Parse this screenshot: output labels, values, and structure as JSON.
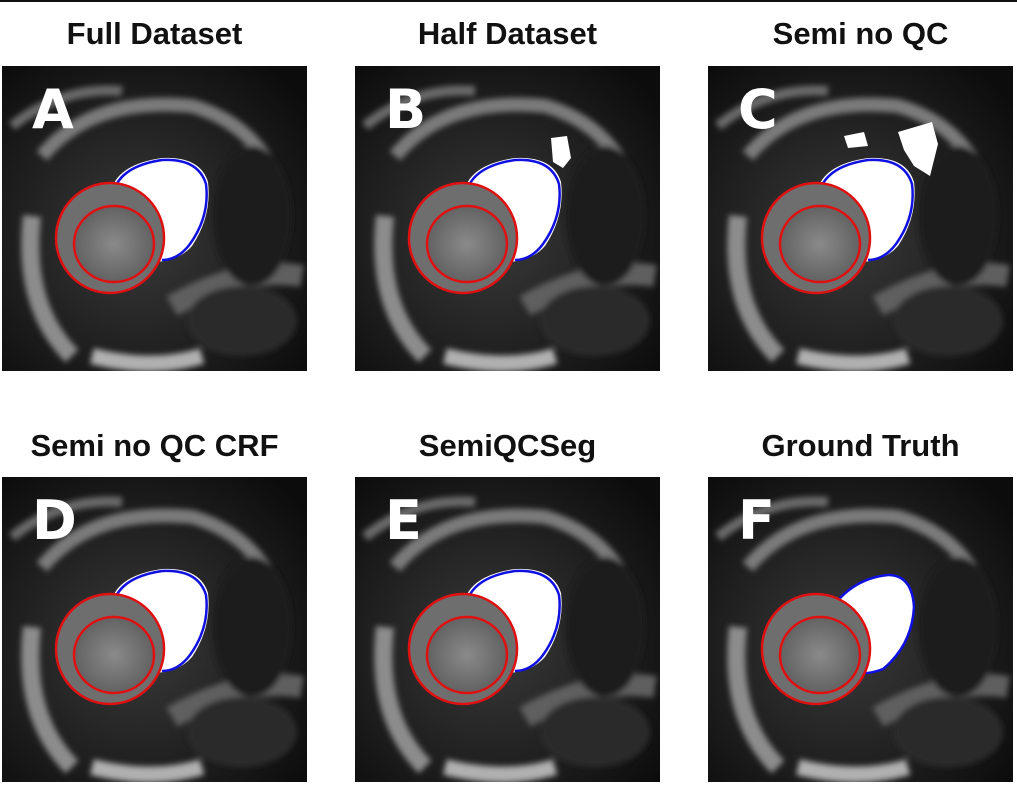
{
  "panels": [
    {
      "letter": "A",
      "title": "Full Dataset",
      "variant": "full"
    },
    {
      "letter": "B",
      "title": "Half Dataset",
      "variant": "half"
    },
    {
      "letter": "C",
      "title": "Semi no QC",
      "variant": "semi"
    },
    {
      "letter": "D",
      "title": "Semi no QC CRF",
      "variant": "crf"
    },
    {
      "letter": "E",
      "title": "SemiQCSeg",
      "variant": "qcseg"
    },
    {
      "letter": "F",
      "title": "Ground Truth",
      "variant": "gt"
    }
  ],
  "colors": {
    "myocardium_contour": "#e01010",
    "right_ventricle_contour": "#1010e0",
    "segmentation_fill": "#ffffff",
    "myocardium_fill": "#6e6e6e"
  }
}
